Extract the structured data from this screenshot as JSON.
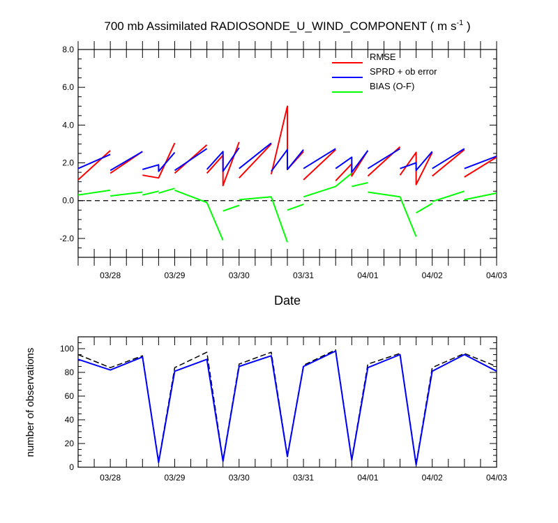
{
  "title": {
    "prefix": "700 mb Assimilated RADIOSONDE_U_WIND_COMPONENT ( m s",
    "sup": "-1",
    "suffix": " )"
  },
  "colors": {
    "rmse": "#ff0000",
    "sprd": "#0000ff",
    "bias": "#00ff00",
    "obs_assim": "#0000ff",
    "obs_poss": "#000000",
    "zero_line": "#000000"
  },
  "chart_data": [
    {
      "type": "line",
      "title": "700 mb Assimilated RADIOSONDE_U_WIND_COMPONENT ( m s-1 )",
      "xlabel": "Date",
      "ylabel": "",
      "xlim": [
        0,
        6.5
      ],
      "ylim": [
        -3.0,
        8.0
      ],
      "x_tick_labels": [
        "03/28",
        "03/29",
        "03/30",
        "03/31",
        "04/01",
        "04/02",
        "04/03"
      ],
      "x_tick_positions": [
        0.5,
        1.5,
        2.5,
        3.5,
        4.5,
        5.5,
        6.5
      ],
      "y_ticks": [
        -2.0,
        0.0,
        2.0,
        4.0,
        6.0,
        8.0
      ],
      "y_tick_labels": [
        "-2.0",
        "0.0",
        "2.0",
        "4.0",
        "6.0",
        "8.0"
      ],
      "legend_position": "top-right",
      "reference_line": 0.0,
      "series": [
        {
          "name": "RMSE",
          "color_key": "rmse",
          "segments": [
            [
              [
                0,
                1.1
              ],
              [
                0.5,
                2.65
              ]
            ],
            [
              [
                0.5,
                1.45
              ],
              [
                1.0,
                2.6
              ]
            ],
            [
              [
                1.0,
                1.35
              ],
              [
                1.25,
                1.2
              ],
              [
                1.5,
                3.05
              ]
            ],
            [
              [
                1.5,
                1.45
              ],
              [
                2.0,
                2.95
              ]
            ],
            [
              [
                2.0,
                1.45
              ],
              [
                2.25,
                2.4
              ],
              [
                2.25,
                0.8
              ],
              [
                2.5,
                3.1
              ]
            ],
            [
              [
                2.5,
                1.2
              ],
              [
                3.0,
                3.0
              ]
            ],
            [
              [
                3.0,
                1.4
              ],
              [
                3.25,
                5.0
              ],
              [
                3.25,
                1.65
              ],
              [
                3.5,
                2.6
              ]
            ],
            [
              [
                3.5,
                1.1
              ],
              [
                4.0,
                2.7
              ]
            ],
            [
              [
                4.0,
                1.05
              ],
              [
                4.25,
                1.95
              ],
              [
                4.25,
                1.3
              ],
              [
                4.5,
                2.65
              ]
            ],
            [
              [
                4.5,
                1.3
              ],
              [
                5.0,
                2.85
              ]
            ],
            [
              [
                5.0,
                1.35
              ],
              [
                5.25,
                2.55
              ],
              [
                5.25,
                0.85
              ],
              [
                5.5,
                2.55
              ]
            ],
            [
              [
                5.5,
                1.3
              ],
              [
                6.0,
                2.7
              ]
            ],
            [
              [
                6.0,
                1.25
              ],
              [
                6.5,
                2.3
              ]
            ]
          ]
        },
        {
          "name": "SPRD + ob error",
          "color_key": "sprd",
          "segments": [
            [
              [
                0,
                1.7
              ],
              [
                0.5,
                2.45
              ]
            ],
            [
              [
                0.5,
                1.6
              ],
              [
                1.0,
                2.6
              ]
            ],
            [
              [
                1.0,
                1.65
              ],
              [
                1.25,
                1.9
              ],
              [
                1.25,
                1.55
              ],
              [
                1.5,
                2.55
              ]
            ],
            [
              [
                1.5,
                1.6
              ],
              [
                2.0,
                2.75
              ]
            ],
            [
              [
                2.0,
                1.65
              ],
              [
                2.25,
                2.6
              ],
              [
                2.25,
                1.55
              ],
              [
                2.5,
                2.8
              ]
            ],
            [
              [
                2.5,
                1.7
              ],
              [
                3.0,
                3.05
              ]
            ],
            [
              [
                3.0,
                1.55
              ],
              [
                3.25,
                2.7
              ],
              [
                3.25,
                1.65
              ],
              [
                3.5,
                2.7
              ]
            ],
            [
              [
                3.5,
                1.7
              ],
              [
                4.0,
                2.75
              ]
            ],
            [
              [
                4.0,
                1.7
              ],
              [
                4.25,
                2.3
              ],
              [
                4.25,
                1.5
              ],
              [
                4.5,
                2.65
              ]
            ],
            [
              [
                4.5,
                1.7
              ],
              [
                5.0,
                2.75
              ]
            ],
            [
              [
                5.0,
                1.7
              ],
              [
                5.25,
                2.0
              ],
              [
                5.25,
                1.6
              ],
              [
                5.5,
                2.6
              ]
            ],
            [
              [
                5.5,
                1.7
              ],
              [
                6.0,
                2.75
              ]
            ],
            [
              [
                6.0,
                1.7
              ],
              [
                6.5,
                2.35
              ]
            ]
          ]
        },
        {
          "name": "BIAS (O-F)",
          "color_key": "bias",
          "segments": [
            [
              [
                0,
                0.3
              ],
              [
                0.5,
                0.55
              ]
            ],
            [
              [
                0.5,
                0.25
              ],
              [
                1.0,
                0.45
              ]
            ],
            [
              [
                1.0,
                0.3
              ],
              [
                1.25,
                0.5
              ]
            ],
            [
              [
                1.25,
                0.4
              ],
              [
                1.5,
                0.65
              ]
            ],
            [
              [
                1.5,
                0.55
              ],
              [
                2.0,
                -0.1
              ],
              [
                2.25,
                -2.1
              ]
            ],
            [
              [
                2.25,
                -0.55
              ],
              [
                2.5,
                -0.25
              ]
            ],
            [
              [
                2.5,
                0.05
              ],
              [
                3.0,
                0.2
              ],
              [
                3.25,
                -2.2
              ]
            ],
            [
              [
                3.25,
                -0.5
              ],
              [
                3.5,
                -0.2
              ]
            ],
            [
              [
                3.5,
                0.2
              ],
              [
                4.0,
                0.75
              ],
              [
                4.25,
                1.45
              ]
            ],
            [
              [
                4.25,
                0.75
              ],
              [
                4.5,
                0.95
              ]
            ],
            [
              [
                4.5,
                0.45
              ],
              [
                5.0,
                0.2
              ],
              [
                5.25,
                -1.9
              ]
            ],
            [
              [
                5.25,
                -0.65
              ],
              [
                5.5,
                -0.15
              ]
            ],
            [
              [
                5.5,
                -0.05
              ],
              [
                6.0,
                0.5
              ]
            ],
            [
              [
                6.0,
                0.05
              ],
              [
                6.5,
                0.4
              ]
            ]
          ]
        }
      ]
    },
    {
      "type": "line",
      "xlabel": "",
      "ylabel": "number of observations",
      "xlim": [
        0,
        6.5
      ],
      "ylim": [
        0,
        110
      ],
      "x_tick_labels": [
        "03/28",
        "03/29",
        "03/30",
        "03/31",
        "04/01",
        "04/02",
        "04/03"
      ],
      "x_tick_positions": [
        0.5,
        1.5,
        2.5,
        3.5,
        4.5,
        5.5,
        6.5
      ],
      "y_ticks": [
        0,
        20,
        40,
        60,
        80,
        100
      ],
      "y_tick_labels": [
        "0",
        "20",
        "40",
        "60",
        "80",
        "100"
      ],
      "series": [
        {
          "style": "dashed",
          "color_key": "obs_poss",
          "x": [
            0,
            0.5,
            1.0,
            1.25,
            1.5,
            2.0,
            2.25,
            2.5,
            3.0,
            3.25,
            3.5,
            4.0,
            4.25,
            4.5,
            5.0,
            5.25,
            5.5,
            6.0,
            6.5
          ],
          "y": [
            95,
            84,
            94,
            5,
            84,
            97,
            6,
            87,
            97,
            10,
            86,
            99,
            7,
            87,
            96,
            3,
            84,
            96,
            85
          ]
        },
        {
          "style": "solid",
          "color_key": "obs_assim",
          "x": [
            0,
            0.5,
            1.0,
            1.25,
            1.5,
            2.0,
            2.25,
            2.5,
            3.0,
            3.25,
            3.5,
            4.0,
            4.25,
            4.5,
            5.0,
            5.25,
            5.5,
            6.0,
            6.5
          ],
          "y": [
            91,
            82,
            93,
            4,
            81,
            91,
            5,
            85,
            94,
            9,
            85,
            98,
            6,
            84,
            95,
            2,
            81,
            95,
            81
          ]
        }
      ]
    }
  ]
}
